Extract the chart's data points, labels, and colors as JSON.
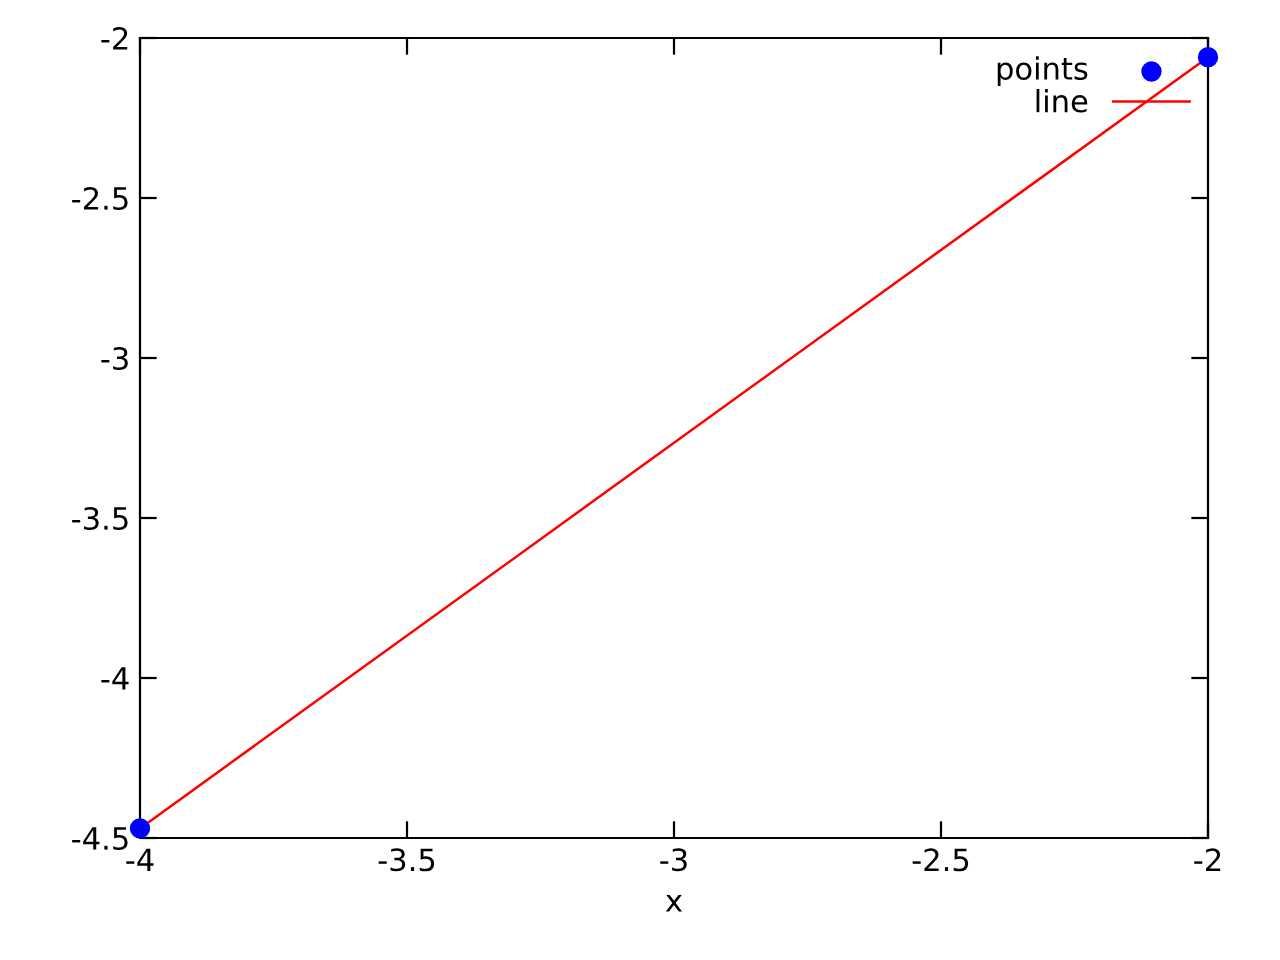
{
  "chart_data": {
    "type": "scatter",
    "xlabel": "x",
    "x": [
      -4,
      -2
    ],
    "series": [
      {
        "name": "points",
        "color": "#0000ff",
        "marker": "circle",
        "values": [
          -4.47,
          -2.06
        ]
      },
      {
        "name": "line",
        "type": "line",
        "color": "#ff0000",
        "marker": "none",
        "line_style": "solid",
        "values": [
          -4.47,
          -2.06
        ]
      }
    ],
    "xlim": [
      -4,
      -2
    ],
    "ylim": [
      -4.5,
      -2
    ],
    "xticks": [
      -4,
      -3.5,
      -3,
      -2.5,
      -2
    ],
    "yticks": [
      -4.5,
      -4,
      -3.5,
      -3,
      -2.5,
      -2
    ],
    "grid": false,
    "legend": "top right"
  }
}
